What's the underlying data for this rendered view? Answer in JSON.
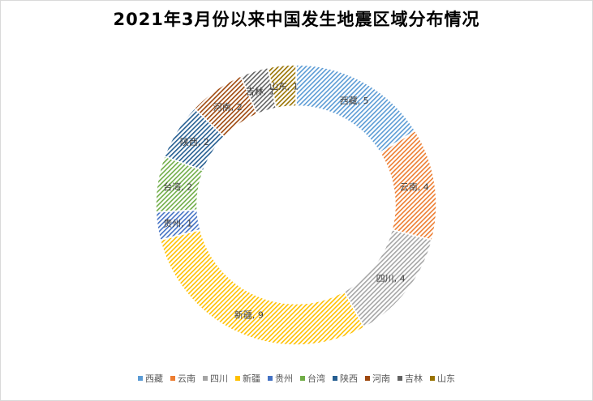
{
  "chart_data": {
    "type": "pie",
    "variant": "doughnut",
    "title": "2021年3月份以来中国发生地震区域分布情况",
    "categories": [
      "西藏",
      "云南",
      "四川",
      "新疆",
      "贵州",
      "台湾",
      "陕西",
      "河南",
      "吉林",
      "山东"
    ],
    "values": [
      5,
      4,
      4,
      9,
      1,
      2,
      2,
      2,
      1,
      1
    ],
    "data_labels": [
      "西藏, 5",
      "云南, 4",
      "四川, 4",
      "新疆, 9",
      "贵州, 1",
      "台湾, 2",
      "陕西, 2",
      "河南, 2",
      "吉林, 1",
      "山东, 1"
    ],
    "colors": [
      "#5b9bd5",
      "#ed7d31",
      "#a5a5a5",
      "#ffc000",
      "#4472c4",
      "#70ad47",
      "#255e91",
      "#9e480e",
      "#636363",
      "#997300"
    ],
    "fill_pattern": "diagonal-hatch",
    "legend_position": "bottom"
  }
}
